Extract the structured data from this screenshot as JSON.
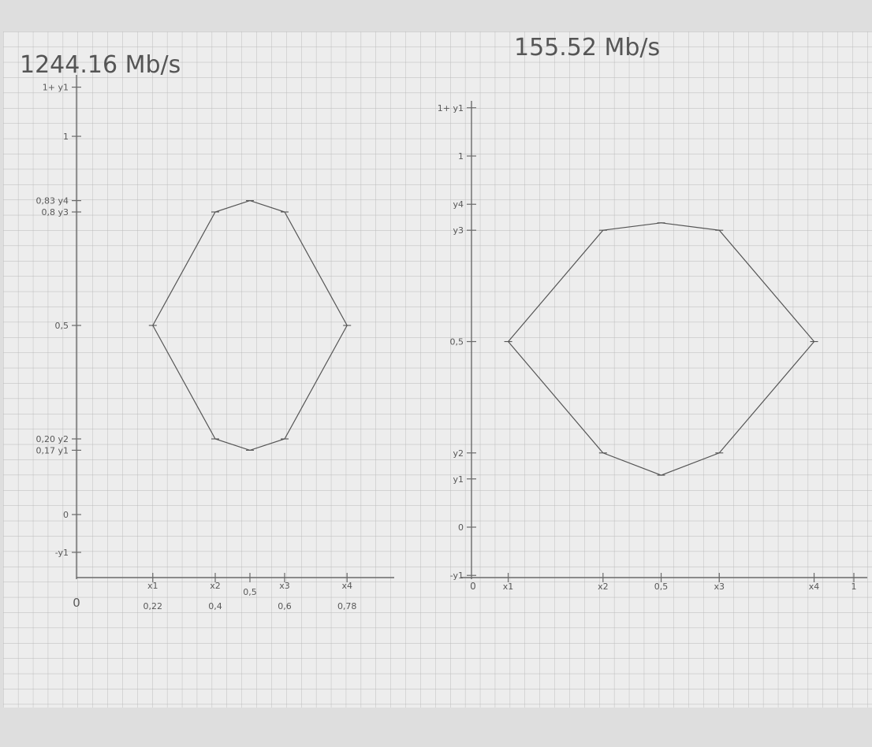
{
  "chart_data": [
    {
      "type": "line",
      "title": "1244.16 Mb/s",
      "series": [
        {
          "points": [
            {
              "x": 0.22,
              "y": 0.5
            },
            {
              "x": 0.4,
              "y": 0.8
            },
            {
              "x": 0.5,
              "y": 0.83
            },
            {
              "x": 0.6,
              "y": 0.8
            },
            {
              "x": 0.78,
              "y": 0.5
            },
            {
              "x": 0.6,
              "y": 0.2
            },
            {
              "x": 0.5,
              "y": 0.17
            },
            {
              "x": 0.4,
              "y": 0.2
            },
            {
              "x": 0.22,
              "y": 0.5
            }
          ]
        }
      ],
      "x_ticks": [
        {
          "v": 0.22,
          "top": "x1",
          "bottom": "0,22"
        },
        {
          "v": 0.4,
          "top": "x2",
          "bottom": "0,4"
        },
        {
          "v": 0.5,
          "top": "",
          "bottom": "0,5"
        },
        {
          "v": 0.6,
          "top": "x3",
          "bottom": "0,6"
        },
        {
          "v": 0.78,
          "top": "x4",
          "bottom": "0,78"
        }
      ],
      "y_ticks": [
        {
          "v": 1.13,
          "label": "1+ y1"
        },
        {
          "v": 1.0,
          "label": "1"
        },
        {
          "v": 0.83,
          "label": "0,83 y4"
        },
        {
          "v": 0.8,
          "label": "0,8 y3"
        },
        {
          "v": 0.5,
          "label": "0,5"
        },
        {
          "v": 0.2,
          "label": "0,20 y2"
        },
        {
          "v": 0.17,
          "label": "0,17 y1"
        },
        {
          "v": 0.0,
          "label": "0"
        },
        {
          "v": -0.1,
          "label": "-y1"
        }
      ],
      "origin_label": "0",
      "xlim": [
        0,
        1
      ],
      "ylim": [
        -0.1,
        1.13
      ]
    },
    {
      "type": "line",
      "title": "155.52 Mb/s",
      "series": [
        {
          "points": [
            {
              "x": 0.12,
              "y": 0.5
            },
            {
              "x": 0.43,
              "y": 0.8
            },
            {
              "x": 0.62,
              "y": 0.82
            },
            {
              "x": 0.81,
              "y": 0.8
            },
            {
              "x": 1.12,
              "y": 0.5
            },
            {
              "x": 0.81,
              "y": 0.2
            },
            {
              "x": 0.62,
              "y": 0.14
            },
            {
              "x": 0.43,
              "y": 0.2
            },
            {
              "x": 0.12,
              "y": 0.5
            }
          ]
        }
      ],
      "x_ticks": [
        {
          "v": 0.12,
          "top": "",
          "bottom": "x1"
        },
        {
          "v": 0.43,
          "top": "",
          "bottom": "x2"
        },
        {
          "v": 0.62,
          "top": "",
          "bottom": "0,5"
        },
        {
          "v": 0.81,
          "top": "",
          "bottom": "x3"
        },
        {
          "v": 1.12,
          "top": "",
          "bottom": "x4"
        },
        {
          "v": 1.25,
          "top": "",
          "bottom": "1"
        }
      ],
      "y_ticks": [
        {
          "v": 1.13,
          "label": "1+ y1"
        },
        {
          "v": 1.0,
          "label": "1"
        },
        {
          "v": 0.87,
          "label": "y4"
        },
        {
          "v": 0.8,
          "label": "y3"
        },
        {
          "v": 0.5,
          "label": "0,5"
        },
        {
          "v": 0.2,
          "label": "y2"
        },
        {
          "v": 0.13,
          "label": "y1"
        },
        {
          "v": 0.0,
          "label": "0"
        },
        {
          "v": -0.13,
          "label": "-y1"
        }
      ],
      "origin_label": "0",
      "xlim": [
        0,
        1.25
      ],
      "ylim": [
        -0.13,
        1.13
      ]
    }
  ]
}
